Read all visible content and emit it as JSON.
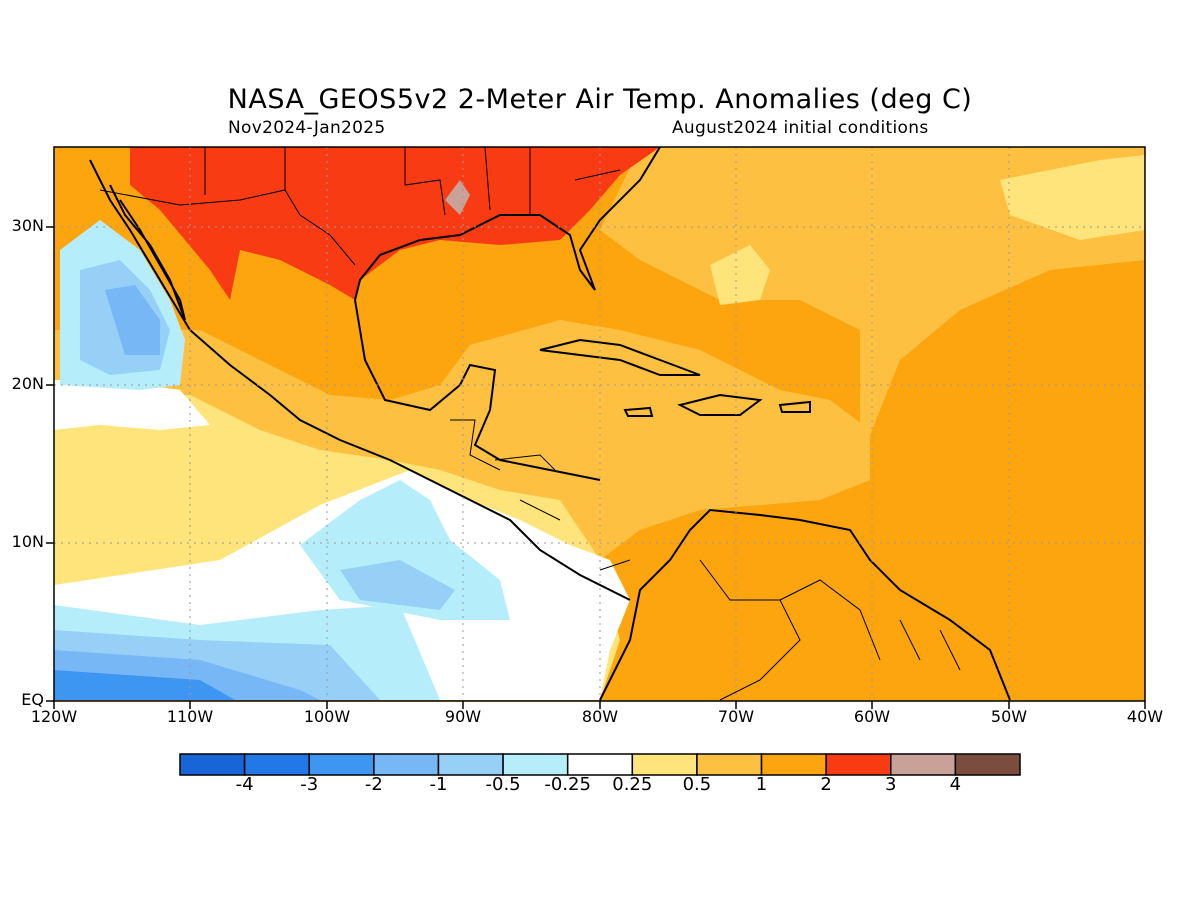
{
  "title": "NASA_GEOS5v2 2-Meter Air Temp. Anomalies (deg C)",
  "subtitle_left": "Nov2024-Jan2025",
  "subtitle_right": "August2024 initial conditions",
  "lat_labels": [
    "30N",
    "20N",
    "10N",
    "EQ"
  ],
  "lon_labels": [
    "120W",
    "110W",
    "100W",
    "90W",
    "80W",
    "70W",
    "60W",
    "50W",
    "40W"
  ],
  "colorbar": {
    "labels": [
      "-4",
      "-3",
      "-2",
      "-1",
      "-0.5",
      "-0.25",
      "0.25",
      "0.5",
      "1",
      "2",
      "3",
      "4"
    ],
    "colors": [
      "#1865d8",
      "#2378e8",
      "#3c96f2",
      "#78b7f5",
      "#96d0f7",
      "#b5eefa",
      "#ffffff",
      "#fee47a",
      "#fdc040",
      "#fda50f",
      "#f93b14",
      "#c9a198",
      "#7a4d3e"
    ]
  },
  "map": {
    "region": "Caribbean / Central America",
    "lat_range": [
      0,
      35
    ],
    "lon_range": [
      -120,
      -40
    ],
    "dominant_anomaly_class": "1 to 2 deg C"
  }
}
